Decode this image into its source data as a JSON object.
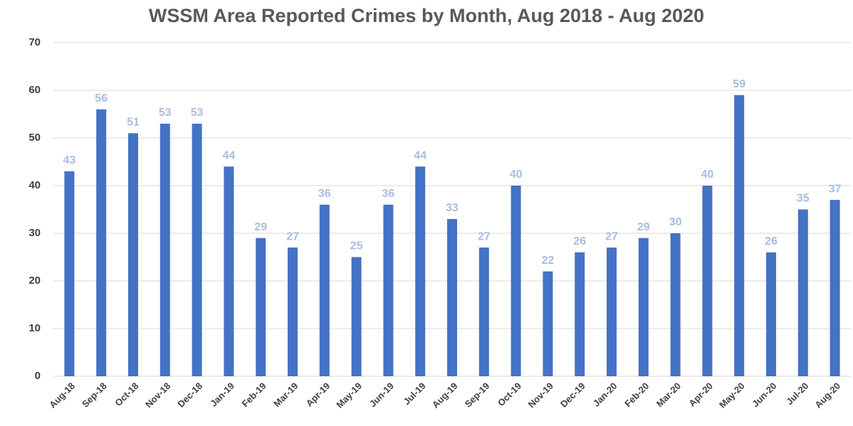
{
  "chart_data": {
    "type": "bar",
    "title": "WSSM Area Reported Crimes by Month, Aug 2018 - Aug 2020",
    "categories": [
      "Aug-18",
      "Sep-18",
      "Oct-18",
      "Nov-18",
      "Dec-18",
      "Jan-19",
      "Feb-19",
      "Mar-19",
      "Apr-19",
      "May-19",
      "Jun-19",
      "Jul-19",
      "Aug-19",
      "Sep-19",
      "Oct-19",
      "Nov-19",
      "Dec-19",
      "Jan-20",
      "Feb-20",
      "Mar-20",
      "Apr-20",
      "May-20",
      "Jun-20",
      "Jul-20",
      "Aug-20"
    ],
    "values": [
      43,
      56,
      51,
      53,
      53,
      44,
      29,
      27,
      36,
      25,
      36,
      44,
      33,
      27,
      40,
      22,
      26,
      27,
      29,
      30,
      40,
      59,
      26,
      35,
      37
    ],
    "color": "#4472c4",
    "ylim": [
      0,
      70
    ],
    "yticks": [
      0,
      10,
      20,
      30,
      40,
      50,
      60,
      70
    ],
    "grid": true
  }
}
